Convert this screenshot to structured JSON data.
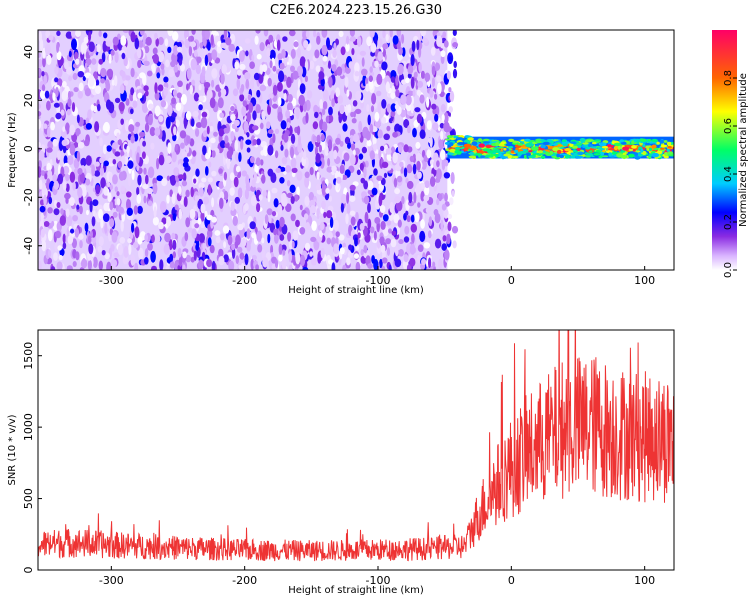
{
  "title": "C2E6.2024.223.15.26.G30",
  "chart_data": [
    {
      "type": "heatmap",
      "xlabel": "Height of straight line (km)",
      "ylabel": "Frequency (Hz)",
      "xlim": [
        -355,
        122
      ],
      "ylim": [
        -50,
        49
      ],
      "x_ticks": [
        -300,
        -200,
        -100,
        0,
        100
      ],
      "y_ticks": [
        -40,
        -20,
        0,
        20,
        40
      ],
      "colorbar": {
        "label": "Normalized spectral amplitude",
        "range": [
          0,
          1
        ],
        "ticks": [
          "0.0",
          "0.2",
          "0.4",
          "0.6",
          "0.8"
        ]
      },
      "regions": [
        {
          "x_range": [
            -355,
            -48
          ],
          "y_range": [
            -50,
            49
          ],
          "amplitude": [
            0.0,
            0.25
          ],
          "description_value": "broadband noise"
        },
        {
          "x_range": [
            -48,
            122
          ],
          "y_range": [
            -4,
            5
          ],
          "amplitude": [
            0.3,
            1.0
          ],
          "center_frequency": 0
        }
      ]
    },
    {
      "type": "line",
      "xlabel": "Height of straight line (km)",
      "ylabel": "SNR (10 * v/v)",
      "xlim": [
        -355,
        122
      ],
      "ylim": [
        0,
        1680
      ],
      "x_ticks": [
        -300,
        -200,
        -100,
        0,
        100
      ],
      "y_ticks": [
        0,
        500,
        1000,
        1500
      ],
      "series": [
        {
          "color": "#ee3333",
          "x": [
            -355,
            -330,
            -300,
            -250,
            -200,
            -150,
            -100,
            -60,
            -35,
            -25,
            -15,
            0,
            20,
            40,
            60,
            80,
            100,
            122
          ],
          "values": [
            180,
            190,
            175,
            155,
            140,
            135,
            140,
            150,
            165,
            380,
            540,
            720,
            880,
            1000,
            1020,
            960,
            930,
            920
          ]
        }
      ]
    }
  ]
}
